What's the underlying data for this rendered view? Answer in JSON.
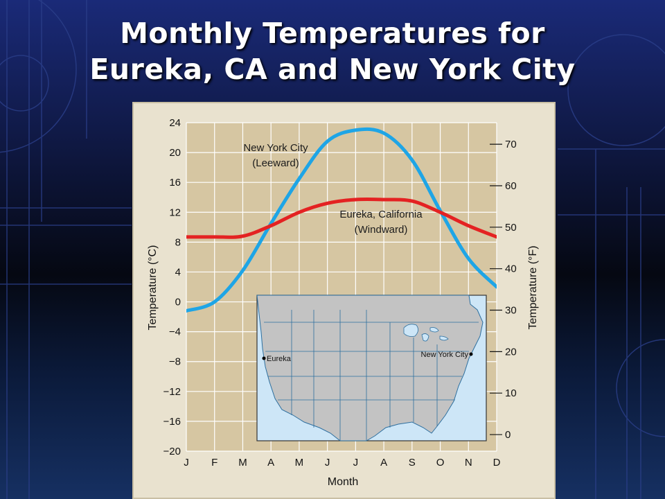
{
  "slide": {
    "title_line1": "Monthly Temperatures for",
    "title_line2": "Eureka, CA and New York City"
  },
  "chart_data": {
    "type": "line",
    "categories": [
      "J",
      "F",
      "M",
      "A",
      "M",
      "J",
      "J",
      "A",
      "S",
      "O",
      "N",
      "D"
    ],
    "xlabel": "Month",
    "ylabel": "Temperature (°C)",
    "y2label": "Temperature (°F)",
    "ylim": [
      -20,
      24
    ],
    "y_ticks": [
      "24",
      "20",
      "16",
      "12",
      "8",
      "4",
      "0",
      "−4",
      "−8",
      "−12",
      "−16",
      "−20"
    ],
    "y2_ticks": [
      "70",
      "60",
      "50",
      "40",
      "30",
      "20",
      "10",
      "0"
    ],
    "grid": true,
    "series": [
      {
        "name": "New York City (Leeward)",
        "label_line1": "New York City",
        "label_line2": "(Leeward)",
        "color": "#1ea5e6",
        "values": [
          -1.2,
          0,
          4.2,
          10.5,
          16.5,
          21.5,
          23.0,
          22.6,
          19.0,
          12.2,
          5.8,
          2.0
        ]
      },
      {
        "name": "Eureka, California (Windward)",
        "label_line1": "Eureka, California",
        "label_line2": "(Windward)",
        "color": "#e42222",
        "values": [
          8.7,
          8.7,
          8.8,
          10.2,
          12.0,
          13.2,
          13.7,
          13.7,
          13.5,
          12.0,
          10.2,
          8.7
        ]
      }
    ],
    "inset_map": {
      "labels": [
        "Eureka",
        "New York City"
      ]
    }
  }
}
